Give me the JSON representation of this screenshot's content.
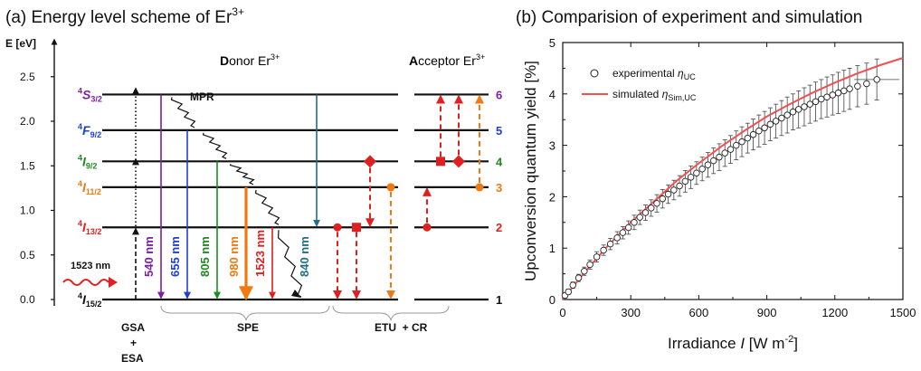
{
  "panel_a": {
    "title_main": "(a) Energy level scheme of Er",
    "title_sup": "3+",
    "y_axis_label": "E [eV]",
    "y_ticks": [
      "0.0",
      "0.5",
      "1.0",
      "1.5",
      "2.0",
      "2.5"
    ],
    "donor_head_bold": "D",
    "donor_head_rest": "onor Er",
    "acceptor_head_bold": "A",
    "acceptor_head_rest": "cceptor Er",
    "head_sup": "3+",
    "levels": [
      {
        "base": "4",
        "letter": "S",
        "sub": "3/2",
        "energy": 2.3,
        "number": "6",
        "color": "#7b1fa2"
      },
      {
        "base": "4",
        "letter": "F",
        "sub": "9/2",
        "energy": 1.9,
        "number": "5",
        "color": "#1e3fd6"
      },
      {
        "base": "4",
        "letter": "I",
        "sub": "9/2",
        "energy": 1.55,
        "number": "4",
        "color": "#208a20"
      },
      {
        "base": "4",
        "letter": "I",
        "sub": "11/2",
        "energy": 1.26,
        "number": "3",
        "color": "#f07a10"
      },
      {
        "base": "4",
        "letter": "I",
        "sub": "13/2",
        "energy": 0.81,
        "number": "2",
        "color": "#e02020"
      },
      {
        "base": "4",
        "letter": "I",
        "sub": "15/2",
        "energy": 0.0,
        "number": "1",
        "color": "#111111"
      }
    ],
    "emissions": [
      {
        "label": "540 nm",
        "color": "#7b1fa2"
      },
      {
        "label": "655 nm",
        "color": "#1e3fd6"
      },
      {
        "label": "805 nm",
        "color": "#208a20"
      },
      {
        "label": "980 nm",
        "color": "#f07a10"
      },
      {
        "label": "1523 nm",
        "color": "#e02020"
      },
      {
        "label": "840 nm",
        "color": "#1f6e8c"
      }
    ],
    "mpr_label": "MPR",
    "excitation_label": "1523 nm",
    "group_labels": {
      "gsa": "GSA",
      "plus": "+",
      "esa": "ESA",
      "spe": "SPE",
      "etu_cr": "ETU  + CR"
    }
  },
  "panel_b": {
    "title": "(b) Comparision of experiment and simulation",
    "chart_data": {
      "type": "scatter",
      "xlabel_pre": "Irradiance ",
      "xlabel_var": "I",
      "xlabel_post": " [W m",
      "xlabel_sup": "-2",
      "xlabel_end": "]",
      "ylabel": "Upconversion quantum yield [%]",
      "xlim": [
        0,
        1500
      ],
      "ylim": [
        0,
        5
      ],
      "x_ticks": [
        "0",
        "300",
        "600",
        "900",
        "1200",
        "1500"
      ],
      "y_ticks": [
        "0",
        "1",
        "2",
        "3",
        "4",
        "5"
      ],
      "legend_placement": "top-left",
      "series": [
        {
          "name": "experimental η_UC",
          "legend_main": "experimental ",
          "legend_var": "η",
          "legend_sub": "UC",
          "style": "open-circle",
          "color": "#222222",
          "x": [
            10,
            25,
            45,
            70,
            95,
            120,
            150,
            180,
            210,
            240,
            265,
            290,
            315,
            340,
            365,
            390,
            415,
            440,
            465,
            490,
            515,
            540,
            565,
            590,
            615,
            640,
            665,
            690,
            715,
            740,
            765,
            790,
            815,
            840,
            865,
            890,
            915,
            940,
            965,
            990,
            1015,
            1040,
            1065,
            1090,
            1115,
            1140,
            1165,
            1190,
            1215,
            1240,
            1265,
            1300,
            1340,
            1385
          ],
          "y": [
            0.08,
            0.15,
            0.28,
            0.42,
            0.55,
            0.68,
            0.83,
            0.96,
            1.08,
            1.2,
            1.3,
            1.4,
            1.5,
            1.6,
            1.69,
            1.78,
            1.87,
            1.96,
            2.05,
            2.13,
            2.21,
            2.3,
            2.38,
            2.46,
            2.54,
            2.62,
            2.7,
            2.77,
            2.85,
            2.92,
            3.0,
            3.07,
            3.14,
            3.21,
            3.28,
            3.34,
            3.41,
            3.47,
            3.53,
            3.59,
            3.65,
            3.7,
            3.75,
            3.8,
            3.85,
            3.9,
            3.94,
            3.98,
            4.02,
            4.06,
            4.1,
            4.15,
            4.2,
            4.28
          ],
          "yerr": [
            0.05,
            0.05,
            0.06,
            0.07,
            0.08,
            0.09,
            0.1,
            0.1,
            0.11,
            0.12,
            0.12,
            0.13,
            0.14,
            0.14,
            0.15,
            0.16,
            0.17,
            0.18,
            0.18,
            0.19,
            0.2,
            0.21,
            0.22,
            0.22,
            0.23,
            0.24,
            0.25,
            0.26,
            0.26,
            0.27,
            0.28,
            0.29,
            0.29,
            0.3,
            0.31,
            0.32,
            0.32,
            0.33,
            0.34,
            0.35,
            0.35,
            0.36,
            0.37,
            0.37,
            0.38,
            0.38,
            0.39,
            0.39,
            0.4,
            0.4,
            0.4,
            0.4,
            0.4,
            0.4
          ]
        },
        {
          "name": "simulated η_Sim,UC",
          "legend_main": "simulated ",
          "legend_var": "η",
          "legend_sub": "Sim,UC",
          "style": "line",
          "color": "#f05050",
          "x": [
            0,
            100,
            200,
            300,
            400,
            500,
            600,
            700,
            800,
            900,
            1000,
            1100,
            1200,
            1300,
            1400,
            1500
          ],
          "y": [
            0.0,
            0.55,
            1.05,
            1.5,
            1.9,
            2.3,
            2.65,
            2.98,
            3.28,
            3.56,
            3.8,
            4.02,
            4.22,
            4.4,
            4.56,
            4.7
          ]
        }
      ]
    }
  }
}
